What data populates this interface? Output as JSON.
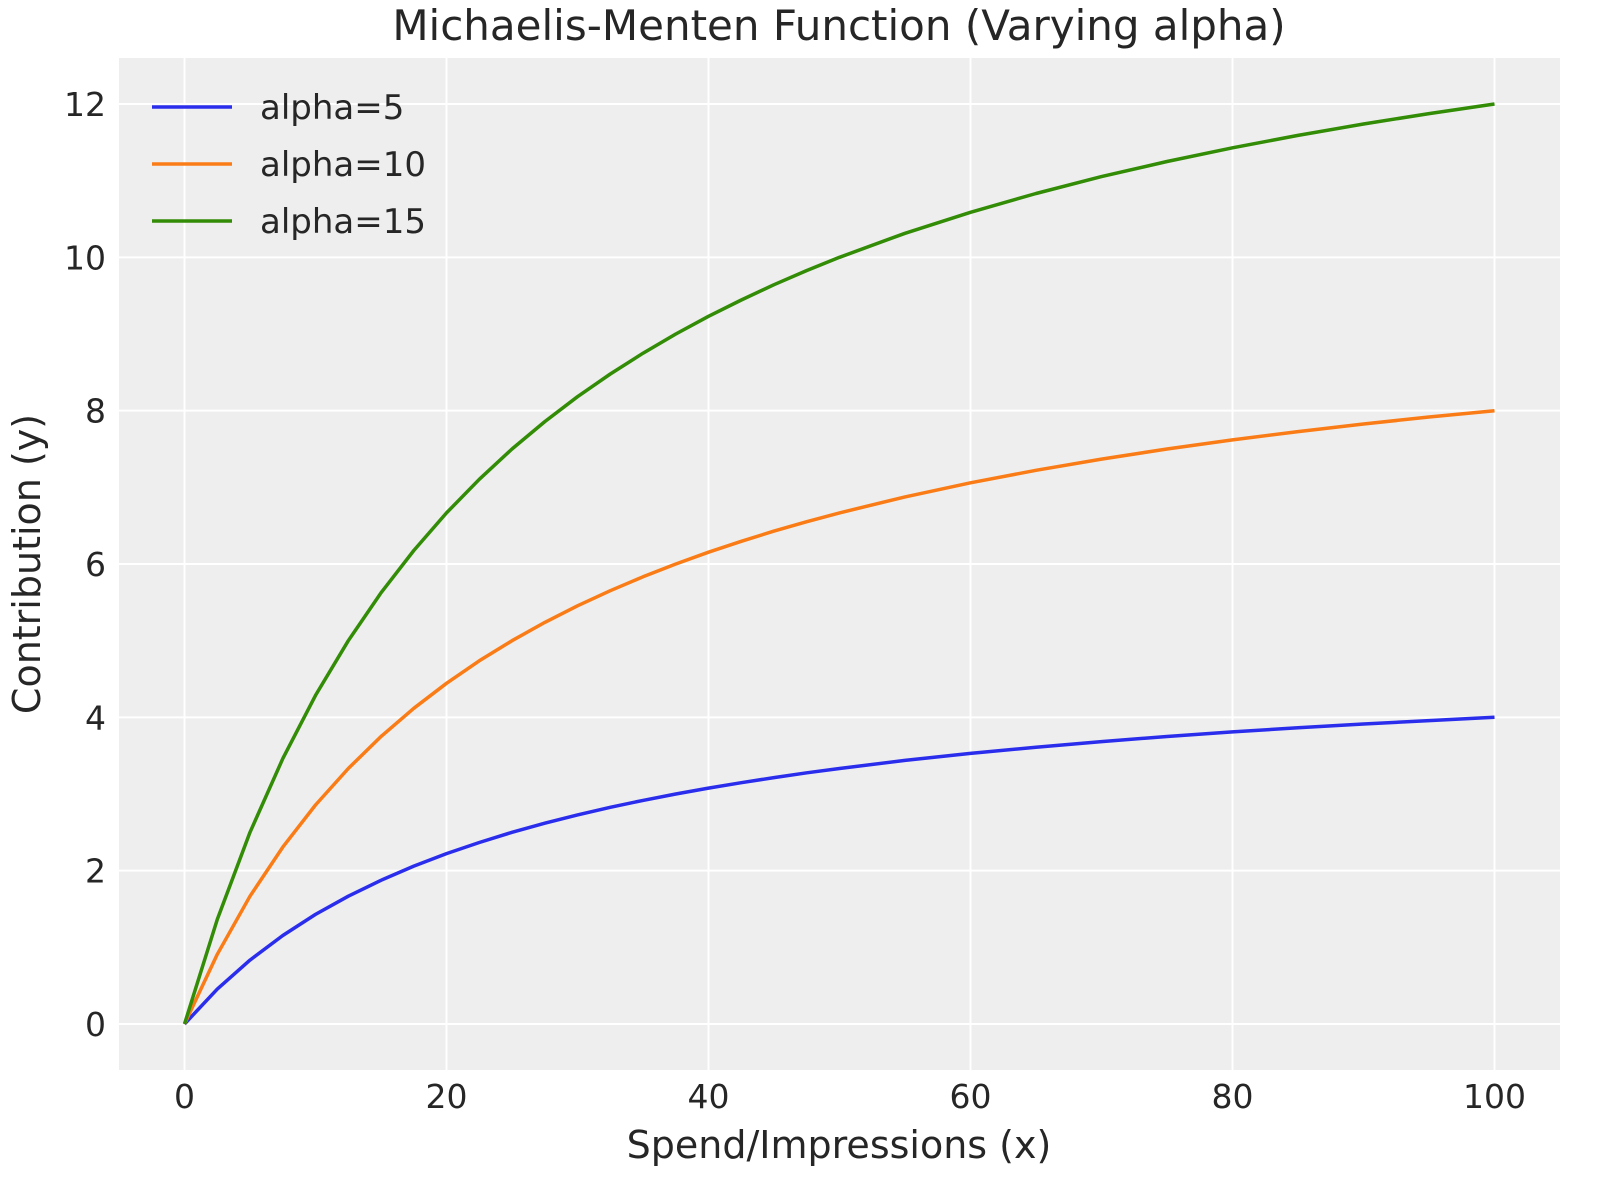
{
  "chart_data": {
    "type": "line",
    "title": "Michaelis-Menten Function (Varying alpha)",
    "xlabel": "Spend/Impressions (x)",
    "ylabel": "Contribution (y)",
    "xlim": [
      -5,
      105
    ],
    "ylim": [
      -0.6,
      12.6
    ],
    "xticks": [
      0,
      20,
      40,
      60,
      80,
      100
    ],
    "yticks": [
      0,
      2,
      4,
      6,
      8,
      10,
      12
    ],
    "grid": true,
    "legend_position": "top-left",
    "background": "#eeeeee",
    "x": [
      0,
      2.5,
      5,
      7.5,
      10,
      12.5,
      15,
      17.5,
      20,
      22.5,
      25,
      27.5,
      30,
      32.5,
      35,
      37.5,
      40,
      42.5,
      45,
      47.5,
      50,
      55,
      60,
      65,
      70,
      75,
      80,
      85,
      90,
      95,
      100
    ],
    "series": [
      {
        "name": "alpha=5",
        "color": "#2a2eec",
        "values": [
          0,
          0.455,
          0.833,
          1.154,
          1.429,
          1.667,
          1.875,
          2.059,
          2.222,
          2.368,
          2.5,
          2.619,
          2.727,
          2.826,
          2.917,
          3.0,
          3.077,
          3.148,
          3.214,
          3.276,
          3.333,
          3.438,
          3.529,
          3.611,
          3.684,
          3.75,
          3.81,
          3.864,
          3.913,
          3.958,
          4.0
        ]
      },
      {
        "name": "alpha=10",
        "color": "#fa7c17",
        "values": [
          0,
          0.909,
          1.667,
          2.308,
          2.857,
          3.333,
          3.75,
          4.118,
          4.444,
          4.737,
          5.0,
          5.238,
          5.455,
          5.652,
          5.833,
          6.0,
          6.154,
          6.296,
          6.429,
          6.552,
          6.667,
          6.875,
          7.059,
          7.222,
          7.368,
          7.5,
          7.619,
          7.727,
          7.826,
          7.917,
          8.0
        ]
      },
      {
        "name": "alpha=15",
        "color": "#328c06",
        "values": [
          0,
          1.364,
          2.5,
          3.462,
          4.286,
          5.0,
          5.625,
          6.176,
          6.667,
          7.105,
          7.5,
          7.857,
          8.182,
          8.478,
          8.75,
          9.0,
          9.231,
          9.444,
          9.643,
          9.828,
          10.0,
          10.313,
          10.588,
          10.833,
          11.053,
          11.25,
          11.429,
          11.591,
          11.739,
          11.875,
          12.0
        ]
      }
    ]
  }
}
